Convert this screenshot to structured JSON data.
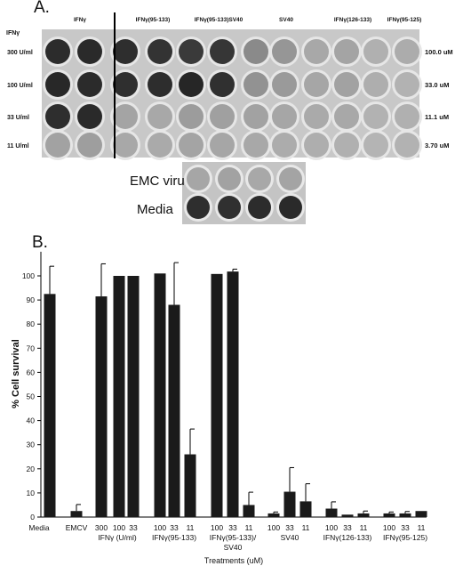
{
  "panel_a": {
    "label": "A.",
    "gamma_label": "IFNγ",
    "column_headers": [
      "IFNγ",
      "IFNγ(95-133)",
      "IFNγ(95-133)SV40",
      "SV40",
      "IFNγ(126-133)",
      "IFNγ(95-125)"
    ],
    "row_labels": [
      "300 U/ml",
      "100 U/ml",
      "33 U/ml",
      "11 U/ml"
    ],
    "concentrations": [
      "100.0 uM",
      "33.0  uM",
      "11.1 uM",
      "3.70 uM"
    ],
    "well_shades": [
      [
        "#2c2c2c",
        "#2a2a2a",
        "#2e2e2e",
        "#333333",
        "#3a3a3a",
        "#363636",
        "#8a8a8a",
        "#969696",
        "#a8a8a8",
        "#a4a4a4",
        "#b0b0b0",
        "#acacac"
      ],
      [
        "#282828",
        "#2b2b2b",
        "#2f2f2f",
        "#2d2d2d",
        "#262626",
        "#303030",
        "#929292",
        "#9a9a9a",
        "#a6a6a6",
        "#a2a2a2",
        "#aeaeae",
        "#b2b2b2"
      ],
      [
        "#2e2e2e",
        "#2a2a2a",
        "#a4a4a4",
        "#a8a8a8",
        "#9c9c9c",
        "#a0a0a0",
        "#a2a2a2",
        "#a6a6a6",
        "#aaaaaa",
        "#a8a8a8",
        "#b2b2b2",
        "#b0b0b0"
      ],
      [
        "#a2a2a2",
        "#9e9e9e",
        "#a8a8a8",
        "#aaaaaa",
        "#a4a4a4",
        "#a6a6a6",
        "#a8a8a8",
        "#acacac",
        "#aeaeae",
        "#b0b0b0",
        "#b4b4b4",
        "#b2b2b2"
      ]
    ],
    "controls": {
      "labels": [
        "EMC virus",
        "Media"
      ],
      "well_shades": [
        [
          "#a6a6a6",
          "#a2a2a2",
          "#a8a8a8",
          "#a4a4a4"
        ],
        [
          "#2e2e2e",
          "#303030",
          "#2c2c2c",
          "#2a2a2a"
        ]
      ]
    }
  },
  "panel_b": {
    "label": "B."
  },
  "chart_data": {
    "type": "bar",
    "ylabel": "% Cell survival",
    "xlabel": "Treatments (uM)",
    "ylim": [
      0,
      110
    ],
    "yticks": [
      0,
      10,
      20,
      30,
      40,
      50,
      60,
      70,
      80,
      90,
      100
    ],
    "bar_color": "#1a1a1a",
    "groups": [
      {
        "name": "Media",
        "bars": [
          {
            "label": "",
            "value": 92.5,
            "error": 11.5
          }
        ]
      },
      {
        "name": "EMCV",
        "bars": [
          {
            "label": "",
            "value": 2.5,
            "error": 2.7
          }
        ]
      },
      {
        "name": "IFNγ (U/ml)",
        "bars": [
          {
            "label": "300",
            "value": 91.5,
            "error": 13.5
          },
          {
            "label": "100",
            "value": 100.0,
            "error": 0
          },
          {
            "label": "33",
            "value": 100.0,
            "error": 0
          }
        ]
      },
      {
        "name": "IFNγ(95-133)",
        "bars": [
          {
            "label": "100",
            "value": 101.0,
            "error": 0
          },
          {
            "label": "33",
            "value": 88.0,
            "error": 17.5
          },
          {
            "label": "11",
            "value": 26.0,
            "error": 10.5
          }
        ]
      },
      {
        "name": "IFNγ(95-133)/ SV40",
        "bars": [
          {
            "label": "100",
            "value": 100.8,
            "error": 0
          },
          {
            "label": "33",
            "value": 101.8,
            "error": 1.0
          },
          {
            "label": "11",
            "value": 5.0,
            "error": 5.3
          }
        ]
      },
      {
        "name": "SV40",
        "bars": [
          {
            "label": "100",
            "value": 1.5,
            "error": 0.6
          },
          {
            "label": "33",
            "value": 10.5,
            "error": 10.0
          },
          {
            "label": "11",
            "value": 6.5,
            "error": 7.3
          }
        ]
      },
      {
        "name": "IFNγ(126-133)",
        "bars": [
          {
            "label": "100",
            "value": 3.5,
            "error": 2.8
          },
          {
            "label": "33",
            "value": 1.0,
            "error": 0
          },
          {
            "label": "11",
            "value": 1.5,
            "error": 1.0
          }
        ]
      },
      {
        "name": "IFNγ(95-125)",
        "bars": [
          {
            "label": "100",
            "value": 1.5,
            "error": 0.6
          },
          {
            "label": "33",
            "value": 1.5,
            "error": 0.8
          },
          {
            "label": "11",
            "value": 2.5,
            "error": 0
          }
        ]
      }
    ]
  }
}
